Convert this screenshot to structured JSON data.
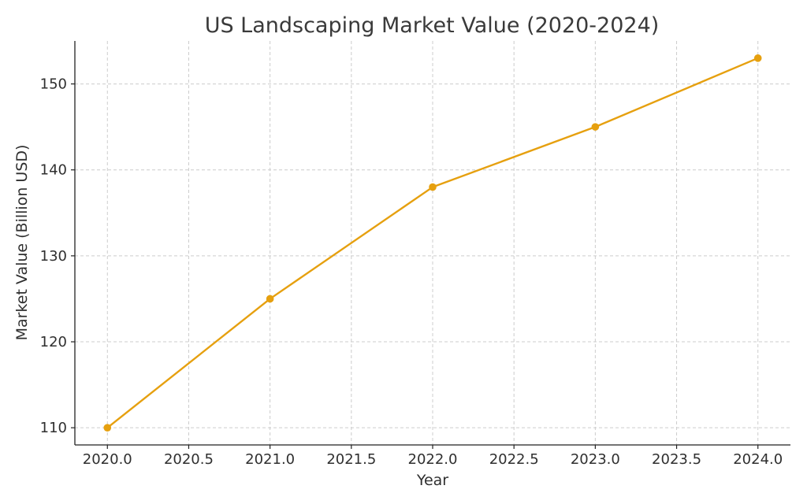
{
  "chart_data": {
    "type": "line",
    "title": "US Landscaping Market Value (2020-2024)",
    "xlabel": "Year",
    "ylabel": "Market Value (Billion USD)",
    "x": [
      2020,
      2021,
      2022,
      2023,
      2024
    ],
    "series": [
      {
        "values": [
          110,
          125,
          138,
          145,
          153
        ],
        "color": "#e6a00f"
      }
    ],
    "xlim": [
      2019.8,
      2024.2
    ],
    "ylim": [
      108,
      155
    ],
    "xticks": [
      2020.0,
      2020.5,
      2021.0,
      2021.5,
      2022.0,
      2022.5,
      2023.0,
      2023.5,
      2024.0
    ],
    "xtick_labels": [
      "2020.0",
      "2020.5",
      "2021.0",
      "2021.5",
      "2022.0",
      "2022.5",
      "2023.0",
      "2023.5",
      "2024.0"
    ],
    "yticks": [
      110,
      120,
      130,
      140,
      150
    ],
    "ytick_labels": [
      "110",
      "120",
      "130",
      "140",
      "150"
    ],
    "grid": true,
    "legend": "none",
    "marker": "circle"
  }
}
